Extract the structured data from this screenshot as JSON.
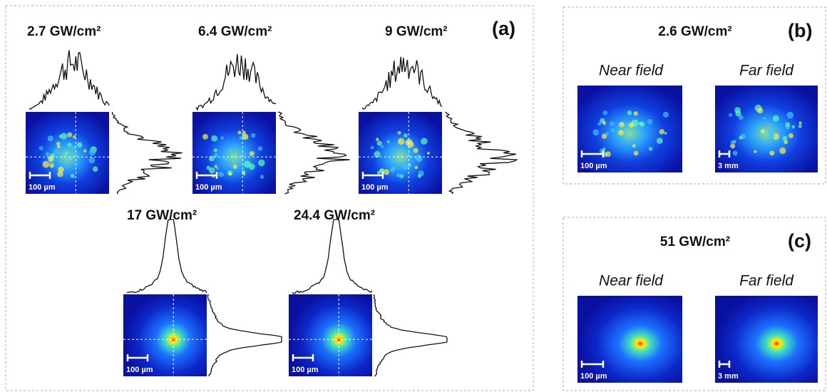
{
  "panels": [
    {
      "label": "(a)",
      "images": [
        {
          "title": "2.7 GW/cm²",
          "scale": "100 µm"
        },
        {
          "title": "6.4 GW/cm²",
          "scale": "100 µm"
        },
        {
          "title": "9 GW/cm²",
          "scale": "100 µm"
        },
        {
          "title": "17 GW/cm²",
          "scale": "100 µm"
        },
        {
          "title": "24.4 GW/cm²",
          "scale": "100 µm"
        }
      ]
    },
    {
      "label": "(b)",
      "title": "2.6 GW/cm²",
      "images": [
        {
          "title": "Near field",
          "scale": "100 µm"
        },
        {
          "title": "Far field",
          "scale": "3 mm"
        }
      ]
    },
    {
      "label": "(c)",
      "title": "51 GW/cm²",
      "images": [
        {
          "title": "Near field",
          "scale": "100 µm"
        },
        {
          "title": "Far field",
          "scale": "3 mm"
        }
      ]
    }
  ]
}
